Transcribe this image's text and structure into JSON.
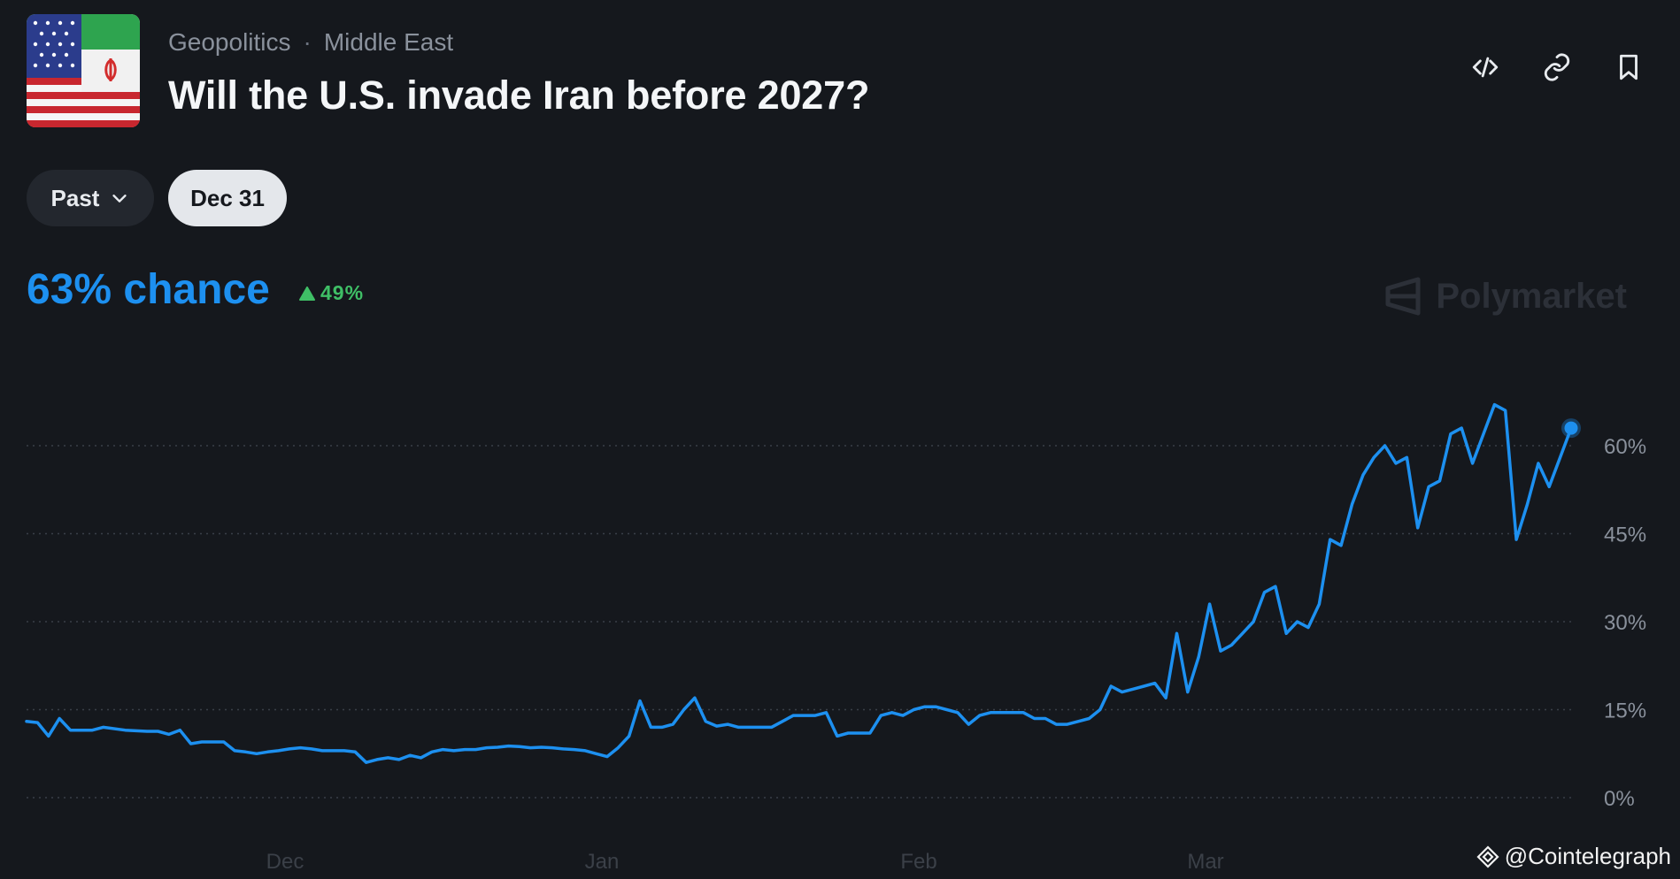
{
  "header": {
    "breadcrumb": [
      "Geopolitics",
      "Middle East"
    ],
    "title": "Will the U.S. invade Iran before 2027?"
  },
  "toolbar": {
    "icons": [
      "embed-code-icon",
      "link-icon",
      "bookmark-icon"
    ]
  },
  "filters": {
    "range_label": "Past",
    "date_label": "Dec 31"
  },
  "summary": {
    "chance_text": "63% chance",
    "change_text": "49%",
    "change_direction": "up"
  },
  "brand": {
    "name": "Polymarket"
  },
  "watermark": {
    "text": "@Cointelegraph"
  },
  "colors": {
    "background": "#15181d",
    "line": "#1d90f0",
    "positive": "#3fbf66",
    "text_muted": "#8a919c"
  },
  "chart_data": {
    "type": "line",
    "title": "",
    "xlabel": "",
    "ylabel": "",
    "ylim": [
      0,
      65
    ],
    "xlim": [
      0,
      136
    ],
    "x_ticks": [
      {
        "label": "Dec",
        "x": 22
      },
      {
        "label": "Jan",
        "x": 50
      },
      {
        "label": "Feb",
        "x": 78
      },
      {
        "label": "Mar",
        "x": 103
      }
    ],
    "y_ticks": [
      {
        "label": "0%",
        "value": 0
      },
      {
        "label": "15%",
        "value": 15
      },
      {
        "label": "30%",
        "value": 30
      },
      {
        "label": "45%",
        "value": 45
      },
      {
        "label": "60%",
        "value": 60
      }
    ],
    "grid": "horizontal-dotted",
    "series": [
      {
        "values": [
          [
            0,
            13
          ],
          [
            1,
            12.8
          ],
          [
            2,
            10.5
          ],
          [
            3,
            13.5
          ],
          [
            4,
            11.5
          ],
          [
            6,
            11.5
          ],
          [
            7,
            12
          ],
          [
            9,
            11.5
          ],
          [
            11,
            11.3
          ],
          [
            12,
            11.3
          ],
          [
            13,
            10.8
          ],
          [
            14,
            11.5
          ],
          [
            15,
            9.2
          ],
          [
            16,
            9.5
          ],
          [
            18,
            9.5
          ],
          [
            19,
            8
          ],
          [
            20,
            7.8
          ],
          [
            21,
            7.5
          ],
          [
            22,
            7.8
          ],
          [
            23,
            8
          ],
          [
            24,
            8.3
          ],
          [
            25,
            8.5
          ],
          [
            26,
            8.3
          ],
          [
            27,
            8
          ],
          [
            28,
            8
          ],
          [
            29,
            8
          ],
          [
            30,
            7.8
          ],
          [
            31,
            6
          ],
          [
            32,
            6.5
          ],
          [
            33,
            6.8
          ],
          [
            34,
            6.5
          ],
          [
            35,
            7.2
          ],
          [
            36,
            6.8
          ],
          [
            37,
            7.8
          ],
          [
            38,
            8.2
          ],
          [
            39,
            8
          ],
          [
            40,
            8.2
          ],
          [
            41,
            8.2
          ],
          [
            42,
            8.5
          ],
          [
            43,
            8.6
          ],
          [
            44,
            8.8
          ],
          [
            45,
            8.7
          ],
          [
            46,
            8.5
          ],
          [
            47,
            8.6
          ],
          [
            48,
            8.5
          ],
          [
            49,
            8.3
          ],
          [
            50,
            8.2
          ],
          [
            51,
            8
          ],
          [
            52,
            7.5
          ],
          [
            53,
            7
          ],
          [
            54,
            8.5
          ],
          [
            55,
            10.5
          ],
          [
            56,
            16.5
          ],
          [
            57,
            12
          ],
          [
            58,
            12
          ],
          [
            59,
            12.5
          ],
          [
            60,
            15
          ],
          [
            61,
            17
          ],
          [
            62,
            13
          ],
          [
            63,
            12.2
          ],
          [
            64,
            12.5
          ],
          [
            65,
            12
          ],
          [
            66,
            12
          ],
          [
            67,
            12
          ],
          [
            68,
            12
          ],
          [
            69,
            13
          ],
          [
            70,
            14
          ],
          [
            71,
            14
          ],
          [
            72,
            14
          ],
          [
            73,
            14.5
          ],
          [
            74,
            10.5
          ],
          [
            75,
            11
          ],
          [
            76,
            11
          ],
          [
            77,
            11
          ],
          [
            78,
            14
          ],
          [
            79,
            14.5
          ],
          [
            80,
            14
          ],
          [
            81,
            15
          ],
          [
            82,
            15.5
          ],
          [
            83,
            15.5
          ],
          [
            84,
            15
          ],
          [
            85,
            14.5
          ],
          [
            86,
            12.5
          ],
          [
            87,
            14
          ],
          [
            88,
            14.5
          ],
          [
            89,
            14.5
          ],
          [
            90,
            14.5
          ],
          [
            91,
            14.5
          ],
          [
            92,
            13.5
          ],
          [
            93,
            13.5
          ],
          [
            94,
            12.5
          ],
          [
            95,
            12.5
          ],
          [
            96,
            13
          ],
          [
            97,
            13.5
          ],
          [
            98,
            15
          ],
          [
            99,
            19
          ],
          [
            100,
            18
          ],
          [
            101,
            18.5
          ],
          [
            102,
            19
          ],
          [
            103,
            19.5
          ],
          [
            104,
            17
          ],
          [
            105,
            28
          ],
          [
            106,
            18
          ],
          [
            107,
            24
          ],
          [
            108,
            33
          ],
          [
            109,
            25
          ],
          [
            110,
            26
          ],
          [
            111,
            28
          ],
          [
            112,
            30
          ],
          [
            113,
            35
          ],
          [
            114,
            36
          ],
          [
            115,
            28
          ],
          [
            116,
            30
          ],
          [
            117,
            29
          ],
          [
            118,
            33
          ],
          [
            119,
            44
          ],
          [
            120,
            43
          ],
          [
            121,
            50
          ],
          [
            122,
            55
          ],
          [
            123,
            58
          ],
          [
            124,
            60
          ],
          [
            125,
            57
          ],
          [
            126,
            58
          ],
          [
            127,
            46
          ],
          [
            128,
            53
          ],
          [
            129,
            54
          ],
          [
            130,
            62
          ],
          [
            131,
            63
          ],
          [
            132,
            57
          ],
          [
            133,
            62
          ],
          [
            134,
            67
          ],
          [
            135,
            66
          ],
          [
            136,
            44
          ],
          [
            137,
            50
          ],
          [
            138,
            57
          ],
          [
            139,
            53
          ],
          [
            140,
            58
          ],
          [
            141,
            63
          ]
        ]
      }
    ],
    "x_domain": [
      0,
      141
    ],
    "last_point": {
      "x": 141,
      "y": 63
    }
  }
}
